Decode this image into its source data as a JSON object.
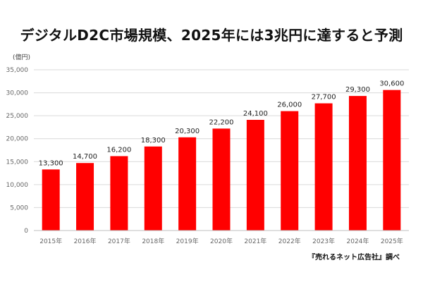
{
  "chart_data": {
    "type": "bar",
    "title": "デジタルD2C市場規模、2025年には3兆円に達すると予測",
    "ylabel": "(億円)",
    "xlabel": "",
    "categories": [
      "2015年",
      "2016年",
      "2017年",
      "2018年",
      "2019年",
      "2020年",
      "2021年",
      "2022年",
      "2023年",
      "2024年",
      "2025年"
    ],
    "values": [
      13300,
      14700,
      16200,
      18300,
      20300,
      22200,
      24100,
      26000,
      27700,
      29300,
      30600
    ],
    "data_labels": [
      "13,300",
      "14,700",
      "16,200",
      "18,300",
      "20,300",
      "22,200",
      "24,100",
      "26,000",
      "27,700",
      "29,300",
      "30,600"
    ],
    "ylim": [
      0,
      35000
    ],
    "yticks": [
      0,
      5000,
      10000,
      15000,
      20000,
      25000,
      30000,
      35000
    ],
    "ytick_labels": [
      "0",
      "5,000",
      "10,000",
      "15,000",
      "20,000",
      "25,000",
      "30,000",
      "35,000"
    ],
    "grid": true,
    "bar_color": "#ff0000",
    "source": "『売れるネット広告社』調べ"
  }
}
